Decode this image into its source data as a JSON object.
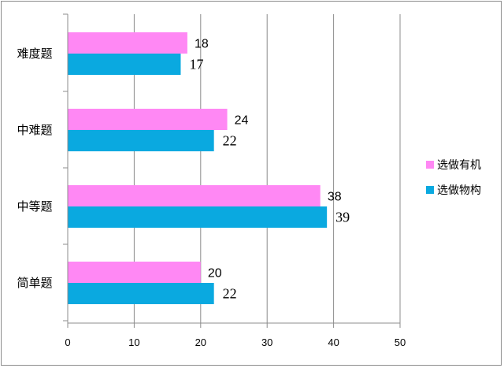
{
  "chart_data": {
    "type": "bar",
    "orientation": "horizontal",
    "categories": [
      "难度题",
      "中难题",
      "中等题",
      "简单题"
    ],
    "series": [
      {
        "name": "选做有机",
        "color": "#FF88F4",
        "values": [
          18,
          24,
          38,
          20
        ]
      },
      {
        "name": "选做物构",
        "color": "#0AA9E0",
        "values": [
          17,
          22,
          39,
          22
        ]
      }
    ],
    "xlim": [
      0,
      50
    ],
    "x_ticks": [
      "0",
      "10",
      "20",
      "30",
      "40",
      "50"
    ],
    "grid": "vertical",
    "legend_position": "right"
  }
}
